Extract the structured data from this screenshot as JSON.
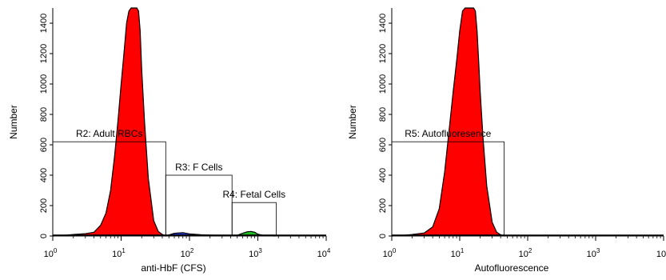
{
  "chart_data": [
    {
      "type": "area",
      "xscale": "log",
      "xlim": [
        1,
        10000
      ],
      "ylim": [
        0,
        1500
      ],
      "xlabel": "anti-HbF (CFS)",
      "ylabel": "Number",
      "xticks": [
        1,
        10,
        100,
        1000,
        10000
      ],
      "yticks": [
        0,
        200,
        400,
        600,
        800,
        1000,
        1200,
        1400
      ],
      "xtick_labels": [
        [
          "10",
          "0"
        ],
        [
          "10",
          "1"
        ],
        [
          "10",
          "2"
        ],
        [
          "10",
          "3"
        ],
        [
          "10",
          "4"
        ]
      ],
      "ytick_labels": [
        "0",
        "200",
        "400",
        "600",
        "800",
        "1000",
        "1200",
        "1400"
      ],
      "grid": false,
      "colors": {
        "fill": "#ff0000",
        "stroke": "#000000",
        "green": "#22bb22",
        "blue": "#2233cc"
      },
      "series": [
        {
          "color": "#ff0000",
          "x": [
            1,
            1.5,
            2,
            3,
            4,
            5,
            6,
            7,
            8,
            9,
            10,
            11,
            12,
            13,
            14,
            15,
            16,
            17,
            18,
            19,
            20,
            22,
            25,
            30,
            35,
            40,
            45
          ],
          "y": [
            0,
            5,
            10,
            15,
            25,
            70,
            150,
            300,
            520,
            760,
            1000,
            1200,
            1400,
            1480,
            1500,
            1500,
            1500,
            1500,
            1480,
            1350,
            1100,
            750,
            380,
            100,
            30,
            10,
            0
          ]
        },
        {
          "color": "#2233cc",
          "x": [
            45,
            60,
            80,
            100,
            150,
            200,
            300,
            400
          ],
          "y": [
            0,
            18,
            22,
            14,
            8,
            6,
            4,
            0
          ]
        },
        {
          "color": "#22bb22",
          "x": [
            400,
            500,
            600,
            700,
            800,
            900,
            1000,
            1200,
            1500,
            1800
          ],
          "y": [
            0,
            5,
            18,
            28,
            30,
            25,
            12,
            4,
            1,
            0
          ]
        }
      ],
      "regions": [
        {
          "label": "R2: Adult RBCs",
          "x1": 1,
          "x2": 45,
          "y": 620
        },
        {
          "label": "R3: F Cells",
          "x1": 45,
          "x2": 420,
          "y": 400
        },
        {
          "label": "R4: Fetal Cells",
          "x1": 420,
          "x2": 1850,
          "y": 220
        }
      ]
    },
    {
      "type": "area",
      "xscale": "log",
      "xlim": [
        1,
        10000
      ],
      "ylim": [
        0,
        1500
      ],
      "xlabel": "Autofluorescence",
      "ylabel": "Number",
      "xticks": [
        1,
        10,
        100,
        1000,
        10000
      ],
      "yticks": [
        0,
        200,
        400,
        600,
        800,
        1000,
        1200,
        1400
      ],
      "xtick_labels": [
        [
          "10",
          "0"
        ],
        [
          "10",
          "1"
        ],
        [
          "10",
          "2"
        ],
        [
          "10",
          "3"
        ],
        [
          "10",
          ""
        ]
      ],
      "ytick_labels": [
        "0",
        "200",
        "400",
        "600",
        "800",
        "1000",
        "1200",
        "1400"
      ],
      "grid": false,
      "colors": {
        "fill": "#ff0000",
        "stroke": "#000000"
      },
      "series": [
        {
          "color": "#ff0000",
          "x": [
            1,
            1.5,
            2,
            3,
            4,
            5,
            6,
            7,
            8,
            9,
            10,
            11,
            12,
            13,
            14,
            15,
            16,
            17,
            18,
            19,
            20,
            22,
            25,
            30,
            35,
            40,
            45
          ],
          "y": [
            0,
            5,
            10,
            20,
            60,
            180,
            420,
            700,
            950,
            1150,
            1350,
            1480,
            1500,
            1500,
            1500,
            1500,
            1500,
            1480,
            1350,
            1150,
            950,
            650,
            330,
            90,
            25,
            8,
            0
          ]
        }
      ],
      "regions": [
        {
          "label": "R5: Autofluoresence",
          "x1": 1,
          "x2": 45,
          "y": 620
        }
      ]
    }
  ]
}
